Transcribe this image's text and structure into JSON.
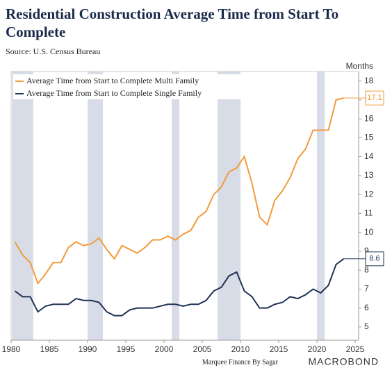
{
  "chart_data": {
    "type": "line",
    "title_line1": "Residential Construction Average Time from Start To",
    "title_line2": "Complete",
    "subtitle": "Source: U.S. Census Bureau",
    "y_axis_label": "Months",
    "footer": "Marquee Finance By Sagar",
    "logo": "MACROBOND",
    "xlim": [
      1980,
      2026
    ],
    "xticks": [
      1980,
      1985,
      1990,
      1995,
      2000,
      2005,
      2010,
      2015,
      2020,
      2025
    ],
    "ylim": [
      4.3,
      18.5
    ],
    "yticks": [
      5,
      6,
      7,
      8,
      9,
      10,
      11,
      12,
      13,
      14,
      15,
      16,
      17,
      18
    ],
    "shaded_periods": [
      [
        1980.1,
        1982.9
      ],
      [
        1990,
        1992
      ],
      [
        2001,
        2002
      ],
      [
        2007,
        2010
      ],
      [
        2020,
        2021
      ]
    ],
    "shade_color": "#d7dce6",
    "x": [
      1980.5,
      1981.5,
      1982.5,
      1983.5,
      1984.5,
      1985.5,
      1986.5,
      1987.5,
      1988.5,
      1989.5,
      1990.5,
      1991.5,
      1992.5,
      1993.5,
      1994.5,
      1995.5,
      1996.5,
      1997.5,
      1998.5,
      1999.5,
      2000.5,
      2001.5,
      2002.5,
      2003.5,
      2004.5,
      2005.5,
      2006.5,
      2007.5,
      2008.5,
      2009.5,
      2010.5,
      2011.5,
      2012.5,
      2013.5,
      2014.5,
      2015.5,
      2016.5,
      2017.5,
      2018.5,
      2019.5,
      2020.5,
      2021.5,
      2022.5,
      2023.5
    ],
    "series": [
      {
        "name": "Average Time from Start to Complete Multi Family",
        "color": "#f39a3c",
        "values": [
          9.5,
          8.8,
          8.4,
          7.3,
          7.8,
          8.4,
          8.4,
          9.2,
          9.5,
          9.3,
          9.4,
          9.7,
          9.1,
          8.6,
          9.3,
          9.1,
          8.9,
          9.2,
          9.6,
          9.6,
          9.8,
          9.6,
          9.9,
          10.1,
          10.8,
          11.1,
          12.0,
          12.4,
          13.2,
          13.4,
          14.0,
          12.6,
          10.8,
          10.4,
          11.7,
          12.2,
          12.9,
          13.9,
          14.4,
          15.4,
          15.4,
          15.4,
          17.0,
          17.1
        ]
      },
      {
        "name": "Average Time from Start to Complete Single Family",
        "color": "#1f3355",
        "values": [
          6.9,
          6.6,
          6.6,
          5.8,
          6.1,
          6.2,
          6.2,
          6.2,
          6.5,
          6.4,
          6.4,
          6.3,
          5.8,
          5.6,
          5.6,
          5.9,
          6.0,
          6.0,
          6.0,
          6.1,
          6.2,
          6.2,
          6.1,
          6.2,
          6.2,
          6.4,
          6.9,
          7.1,
          7.7,
          7.9,
          6.9,
          6.6,
          6.0,
          6.0,
          6.2,
          6.3,
          6.6,
          6.5,
          6.7,
          7.0,
          6.8,
          7.2,
          8.3,
          8.6
        ]
      }
    ]
  }
}
